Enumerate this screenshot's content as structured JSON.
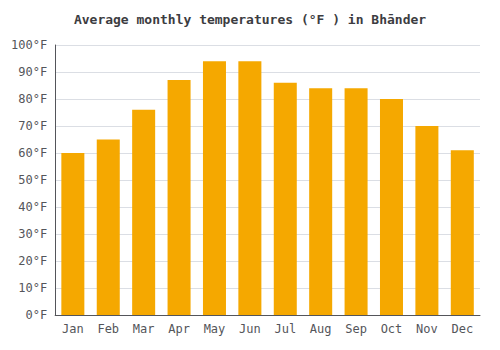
{
  "chart_data": {
    "type": "bar",
    "title": "Average monthly temperatures (°F ) in Bhānder",
    "categories": [
      "Jan",
      "Feb",
      "Mar",
      "Apr",
      "May",
      "Jun",
      "Jul",
      "Aug",
      "Sep",
      "Oct",
      "Nov",
      "Dec"
    ],
    "values": [
      60,
      65,
      76,
      87,
      94,
      94,
      86,
      84,
      84,
      80,
      70,
      61
    ],
    "color": "#F5A800",
    "ylim": [
      0,
      100
    ],
    "yticks": [
      {
        "value": 0,
        "label": "0°F"
      },
      {
        "value": 10,
        "label": "10°F"
      },
      {
        "value": 20,
        "label": "20°F"
      },
      {
        "value": 30,
        "label": "30°F"
      },
      {
        "value": 40,
        "label": "40°F"
      },
      {
        "value": 50,
        "label": "50°F"
      },
      {
        "value": 60,
        "label": "60°F"
      },
      {
        "value": 70,
        "label": "70°F"
      },
      {
        "value": 80,
        "label": "80°F"
      },
      {
        "value": 90,
        "label": "90°F"
      },
      {
        "value": 100,
        "label": "100°F"
      }
    ],
    "grid": true
  }
}
